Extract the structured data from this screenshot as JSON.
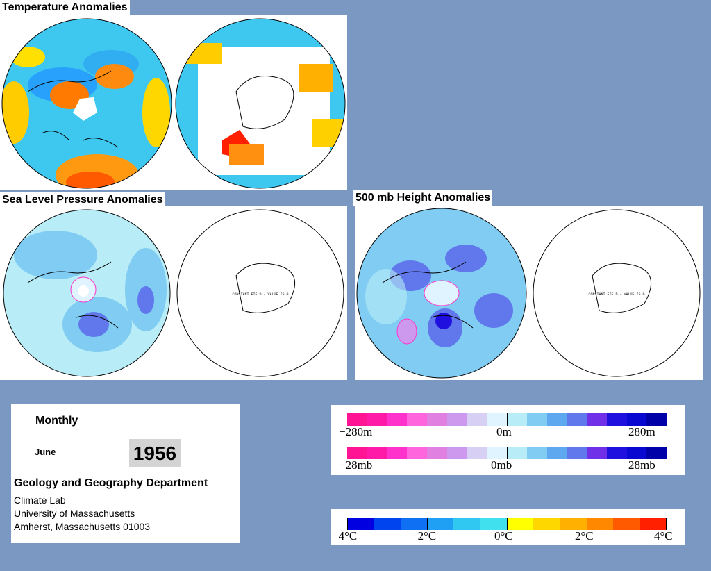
{
  "titles": {
    "temperature": "Temperature Anomalies",
    "slp": "Sea Level Pressure Anomalies",
    "height500": "500 mb Height Anomalies"
  },
  "constant_field_text": "CONSTANT FIELD - VALUE IS 0",
  "info": {
    "period": "Monthly",
    "month": "June",
    "year": "1956",
    "department": "Geology and Geography Department",
    "line1": "Climate Lab",
    "line2": "University of Massachusetts",
    "line3": "Amherst, Massachusetts 01003"
  },
  "legends": {
    "height_labels": [
      "−280m",
      "0m",
      "280m"
    ],
    "pressure_labels": [
      "−28mb",
      "0mb",
      "28mb"
    ],
    "temp_labels": [
      "−4°C",
      "−2°C",
      "0°C",
      "2°C",
      "4°C"
    ],
    "pressure_colors": [
      "#ff1493",
      "#ff1aa8",
      "#ff33cc",
      "#ff66dd",
      "#e080e0",
      "#cc99ee",
      "#d8d0f4",
      "#e0f4ff",
      "#b8ecf6",
      "#80ccf2",
      "#5ea8f0",
      "#6078ec",
      "#7030e8",
      "#2010e0",
      "#0808d0",
      "#0000a8"
    ],
    "temp_colors": [
      "#0000e0",
      "#0044f0",
      "#1070f4",
      "#20a0f4",
      "#30c8f0",
      "#40e0ee",
      "#ffff00",
      "#ffd700",
      "#ffb000",
      "#ff8800",
      "#ff5a00",
      "#ff2000"
    ]
  }
}
